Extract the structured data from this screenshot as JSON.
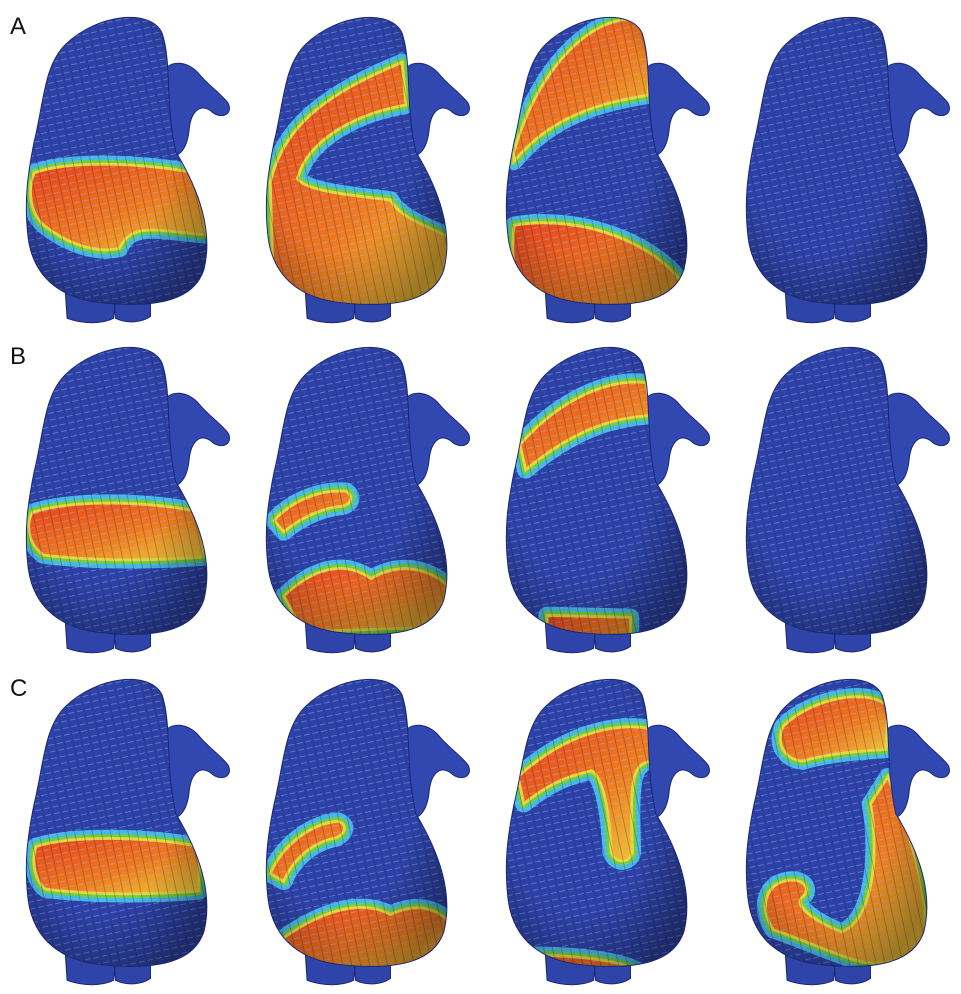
{
  "panels": {
    "rows": [
      {
        "label": "A"
      },
      {
        "label": "B"
      },
      {
        "label": "C"
      }
    ]
  }
}
